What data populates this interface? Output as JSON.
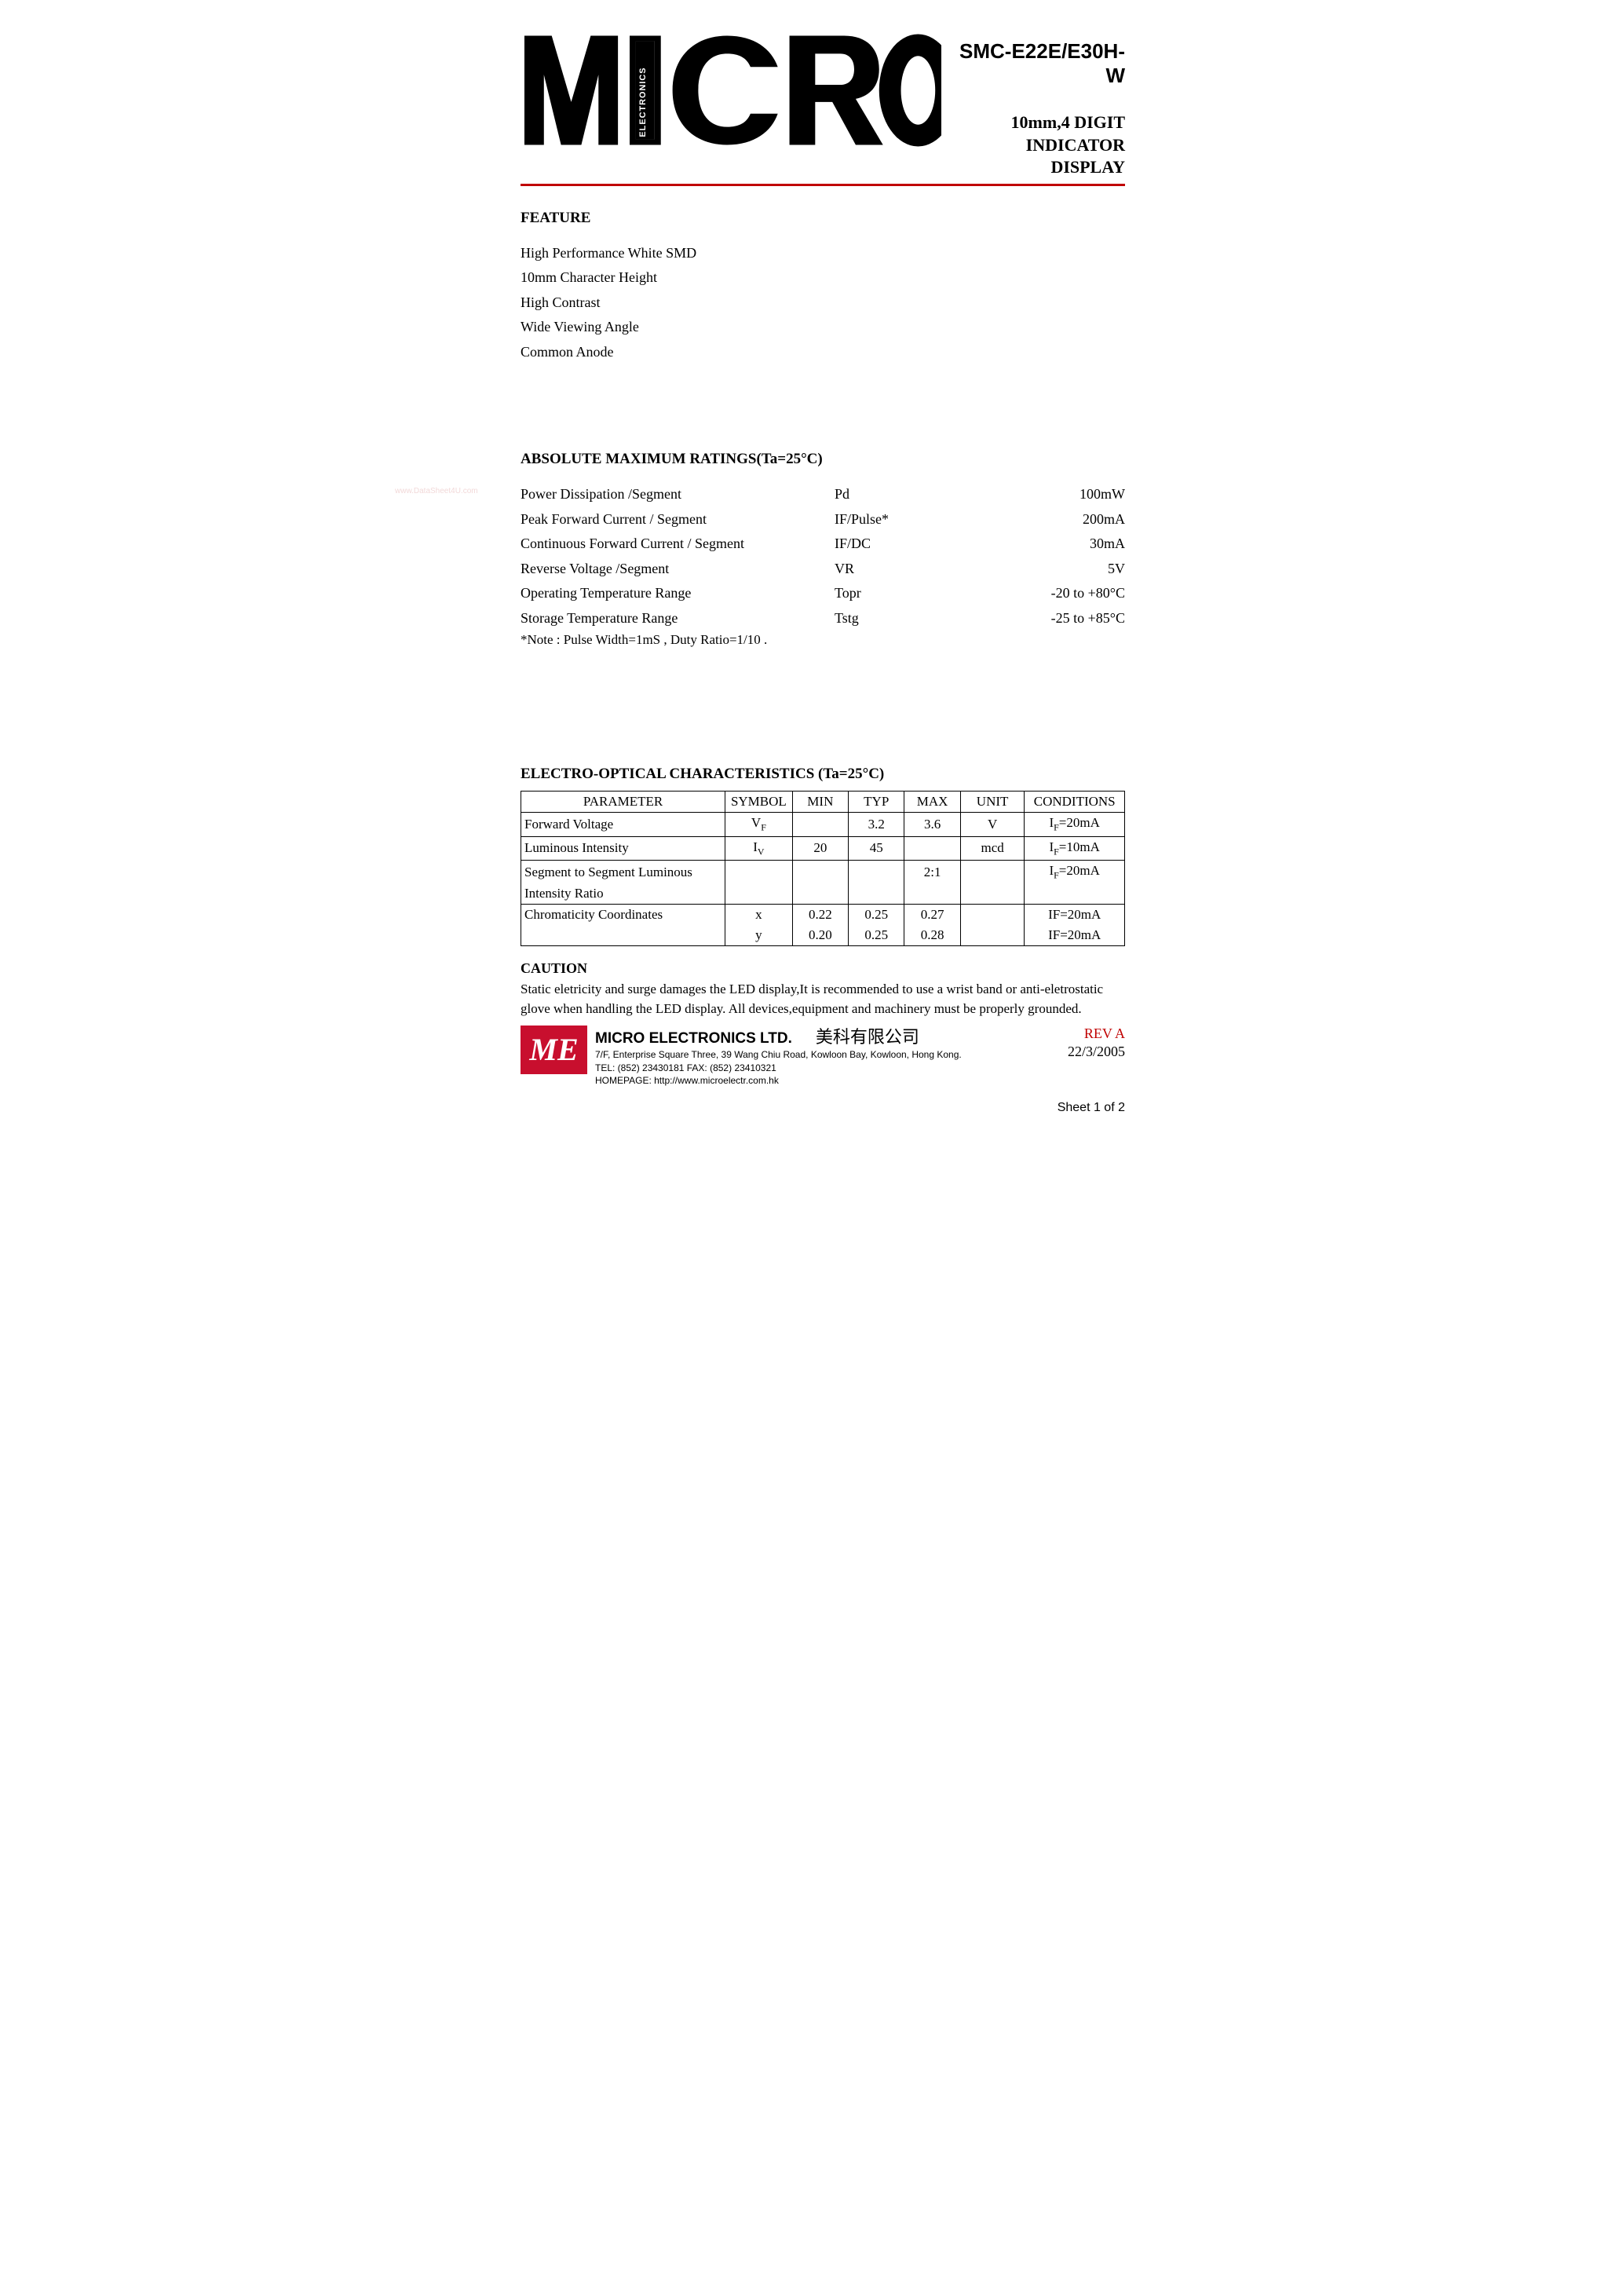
{
  "header": {
    "logo_text": "MICRO",
    "logo_inner": "ELECTRONICS",
    "part_number": "SMC-E22E/E30H-W",
    "subtitle_lines": [
      "10mm,4 DIGIT",
      "INDICATOR",
      "DISPLAY"
    ]
  },
  "rule_color": "#c00000",
  "feature": {
    "heading": "FEATURE",
    "items": [
      "High  Performance  White  SMD",
      "10mm  Character  Height",
      "High  Contrast",
      "Wide  Viewing  Angle",
      "Common  Anode"
    ]
  },
  "ratings": {
    "heading": "ABSOLUTE  MAXIMUM  RATINGS(Ta=25°C)",
    "rows": [
      {
        "param": "Power  Dissipation  /Segment",
        "symbol": "Pd",
        "value": "100mW"
      },
      {
        "param": "Peak  Forward  Current  / Segment",
        "symbol": "IF/Pulse*",
        "value": "200mA"
      },
      {
        "param": "Continuous  Forward  Current / Segment",
        "symbol": "IF/DC",
        "value": "30mA"
      },
      {
        "param": "Reverse  Voltage  /Segment",
        "symbol": "VR",
        "value": "5V"
      },
      {
        "param": "Operating  Temperature  Range",
        "symbol": "Topr",
        "value": "-20 to +80°C"
      },
      {
        "param": "Storage  Temperature  Range",
        "symbol": "Tstg",
        "value": "-25 to +85°C"
      }
    ],
    "note": "*Note : Pulse  Width=1mS , Duty  Ratio=1/10 ."
  },
  "eo": {
    "heading": "ELECTRO-OPTICAL  CHARACTERISTICS (Ta=25°C)",
    "columns": [
      "PARAMETER",
      "SYMBOL",
      "MIN",
      "TYP",
      "MAX",
      "UNIT",
      "CONDITIONS"
    ],
    "col_widths": [
      "255px",
      "80px",
      "70px",
      "70px",
      "70px",
      "80px",
      "125px"
    ],
    "rows": [
      {
        "param": "Forward  Voltage",
        "symbol_html": "V<sub>F</sub>",
        "min": "",
        "typ": "3.2",
        "max": "3.6",
        "unit": "V",
        "cond_html": "I<sub>F</sub>=20mA",
        "bottom_open": false
      },
      {
        "param": "Luminous  Intensity",
        "symbol_html": "I<sub>V</sub>",
        "min": "20",
        "typ": "45",
        "max": "",
        "unit": "mcd",
        "cond_html": "I<sub>F</sub>=10mA",
        "bottom_open": false
      },
      {
        "param": "Segment  to  Segment  Luminous",
        "symbol_html": "",
        "min": "",
        "typ": "",
        "max": "2:1",
        "unit": "",
        "cond_html": "I<sub>F</sub>=20mA",
        "bottom_open": true
      },
      {
        "param": "Intensity  Ratio",
        "symbol_html": "",
        "min": "",
        "typ": "",
        "max": "",
        "unit": "",
        "cond_html": "",
        "top_open": true,
        "bottom_open": false
      },
      {
        "param": "Chromaticity   Coordinates",
        "symbol_html": "x",
        "min": "0.22",
        "typ": "0.25",
        "max": "0.27",
        "unit": "",
        "cond_html": "IF=20mA",
        "bottom_open": true
      },
      {
        "param": "",
        "symbol_html": "y",
        "min": "0.20",
        "typ": "0.25",
        "max": "0.28",
        "unit": "",
        "cond_html": "IF=20mA",
        "top_open": true,
        "bottom_open": false
      }
    ]
  },
  "caution": {
    "heading": "CAUTION",
    "text": "Static eletricity and surge damages the LED display,It is recommended to use a wrist band or anti-eletrostatic glove when handling the LED display. All devices,equipment and machinery must be properly grounded."
  },
  "footer": {
    "logo_small": "ME",
    "logo_bg": "#c80f2e",
    "company": "MICRO ELECTRONICS LTD.",
    "chinese": "美科有限公司",
    "address": "7/F, Enterprise Square Three, 39 Wang Chiu Road, Kowloon Bay, Kowloon, Hong Kong.",
    "tel_fax": "TEL: (852) 23430181 FAX: (852) 23410321",
    "homepage": "HOMEPAGE: http://www.microelectr.com.hk",
    "rev": "REV  A",
    "date": "22/3/2005",
    "sheet": "Sheet 1 of  2"
  },
  "watermark": "www.DataSheet4U.com"
}
